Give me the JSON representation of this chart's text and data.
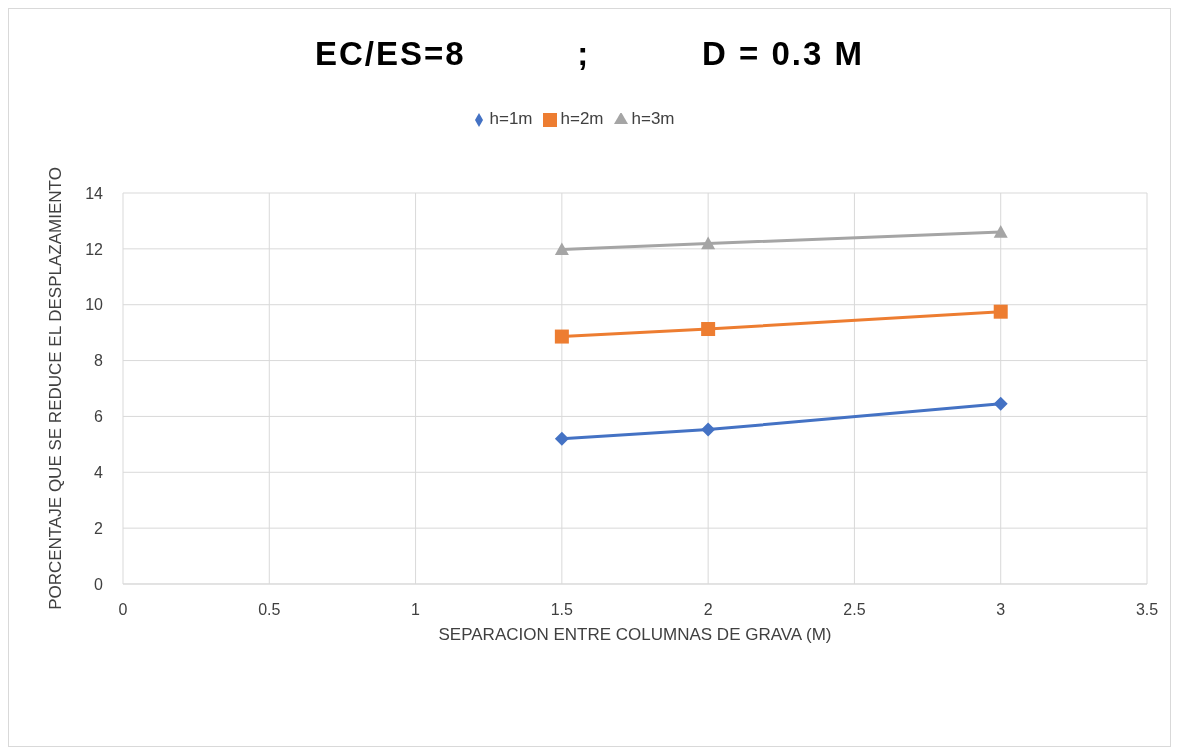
{
  "chart_data": {
    "type": "line",
    "title": "EC/ES=8          ;          D = 0.3 M",
    "xlabel": "SEPARACION ENTRE COLUMNAS DE GRAVA (M)",
    "ylabel": "PORCENTAJE QUE SE REDUCE EL DESPLAZAMIENTO",
    "x": [
      1.5,
      2,
      3
    ],
    "series": [
      {
        "name": "h=1m",
        "color": "#4472c4",
        "marker": "diamond",
        "values": [
          5.2,
          5.53,
          6.45
        ]
      },
      {
        "name": "h=2m",
        "color": "#ed7d31",
        "marker": "square",
        "values": [
          8.86,
          9.13,
          9.75
        ]
      },
      {
        "name": "h=3m",
        "color": "#a5a5a5",
        "marker": "triangle",
        "values": [
          11.98,
          12.19,
          12.6
        ]
      }
    ],
    "xlim": [
      0,
      3.5
    ],
    "xticks": [
      0,
      0.5,
      1,
      1.5,
      2,
      2.5,
      3,
      3.5
    ],
    "ylim": [
      0,
      14
    ],
    "yticks": [
      0,
      2,
      4,
      6,
      8,
      10,
      12,
      14
    ],
    "grid": true,
    "legend": "top"
  }
}
